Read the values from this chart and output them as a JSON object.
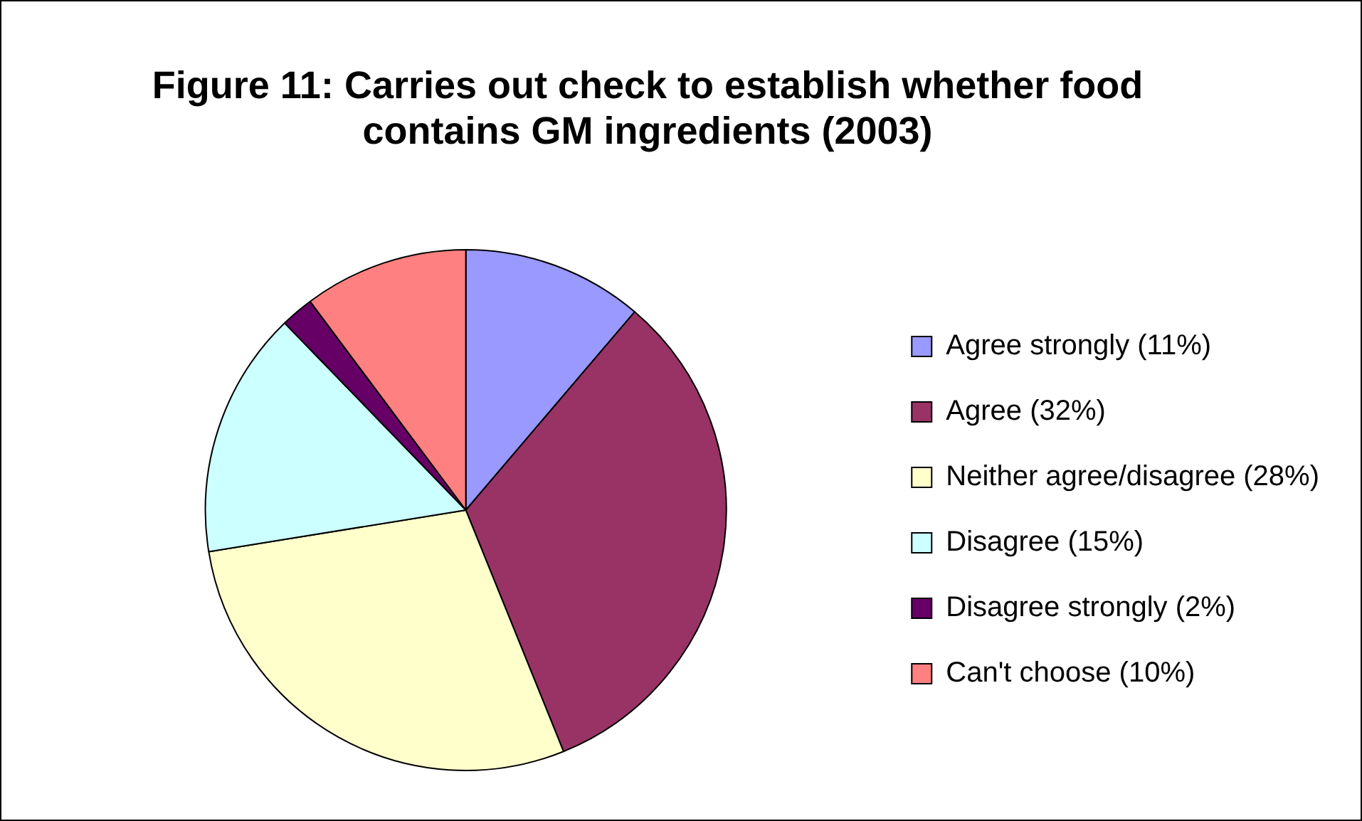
{
  "chart_data": {
    "type": "pie",
    "title": "Figure 11: Carries out check to establish whether food contains GM ingredients (2003)",
    "categories": [
      "Agree strongly (11%)",
      "Agree (32%)",
      "Neither agree/disagree (28%)",
      "Disagree (15%)",
      "Disagree strongly (2%)",
      "Can't choose (10%)"
    ],
    "values": [
      11,
      32,
      28,
      15,
      2,
      10
    ],
    "colors": [
      "#9999ff",
      "#993366",
      "#ffffcc",
      "#ccffff",
      "#660066",
      "#ff8080"
    ],
    "legend": "right"
  }
}
